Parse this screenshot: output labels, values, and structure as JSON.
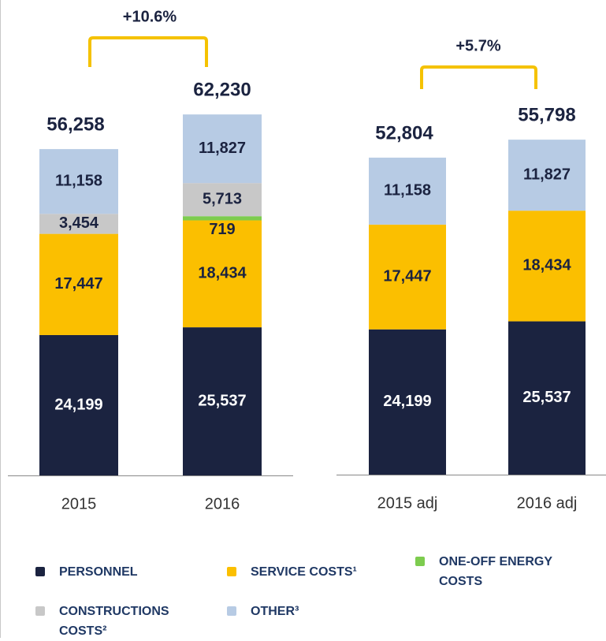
{
  "chart_data": [
    {
      "type": "bar",
      "stacked": true,
      "annotation": "+10.6%",
      "categories": [
        "2015",
        "2016"
      ],
      "ylim": [
        0,
        70000
      ],
      "totals": [
        56258,
        62230
      ],
      "total_labels": [
        "56,258",
        "62,230"
      ],
      "series": [
        {
          "name": "PERSONNEL",
          "color": "#1b2340",
          "values": [
            24199,
            25537
          ],
          "value_labels": [
            "24,199",
            "25,537"
          ]
        },
        {
          "name": "SERVICE COSTS¹",
          "color": "#fbbf00",
          "values": [
            17447,
            18434
          ],
          "value_labels": [
            "17,447",
            "18,434"
          ]
        },
        {
          "name": "ONE-OFF ENERGY COSTS",
          "color": "#7dcc4f",
          "values": [
            null,
            719
          ],
          "value_labels": [
            null,
            "719"
          ]
        },
        {
          "name": "CONSTRUCTIONS COSTS²",
          "color": "#c8c8c8",
          "values": [
            3454,
            5713
          ],
          "value_labels": [
            "3,454",
            "5,713"
          ]
        },
        {
          "name": "OTHER³",
          "color": "#b7cbe4",
          "values": [
            11158,
            11827
          ],
          "value_labels": [
            "11,158",
            "11,827"
          ]
        }
      ]
    },
    {
      "type": "bar",
      "stacked": true,
      "annotation": "+5.7%",
      "categories": [
        "2015 adj",
        "2016 adj"
      ],
      "ylim": [
        0,
        70000
      ],
      "totals": [
        52804,
        55798
      ],
      "total_labels": [
        "52,804",
        "55,798"
      ],
      "series": [
        {
          "color": "#1b2340",
          "values": [
            24199,
            25537
          ],
          "value_labels": [
            "24,199",
            "25,537"
          ]
        },
        {
          "color": "#fbbf00",
          "values": [
            17447,
            18434
          ],
          "value_labels": [
            "17,447",
            "18,434"
          ]
        },
        {
          "color": "#b7cbe4",
          "values": [
            11158,
            11827
          ],
          "value_labels": [
            "11,158",
            "11,827"
          ]
        }
      ]
    }
  ]
}
